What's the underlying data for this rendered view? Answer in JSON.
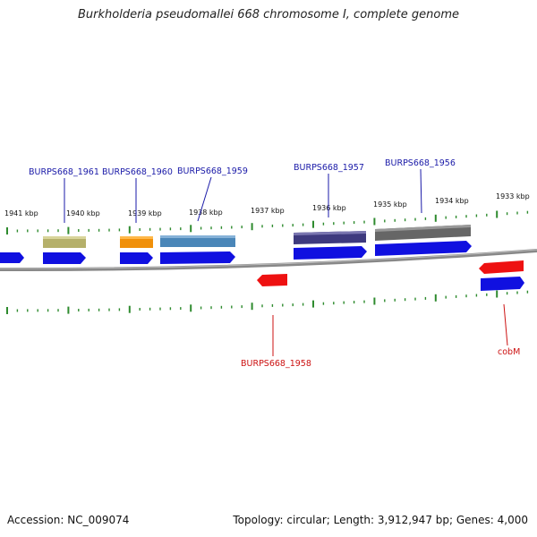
{
  "title": "Burkholderia pseudomallei 668 chromosome I, complete genome",
  "footer": {
    "accession": "Accession: NC_009074",
    "summary": "Topology: circular; Length: 3,912,947 bp; Genes: 4,000"
  },
  "colors": {
    "backbone": "#888888",
    "tick": "#2e8b2e",
    "cds": "#1010e0",
    "minus_strand_cds": "#ee1111",
    "label_blue": "#1a1aa8",
    "label_red": "#cc1111"
  },
  "kbp_ticks": [
    "1941 kbp",
    "1940 kbp",
    "1939 kbp",
    "1938 kbp",
    "1937 kbp",
    "1936 kbp",
    "1935 kbp",
    "1934 kbp",
    "1933 kbp"
  ],
  "gene_labels_top": [
    "BURPS668_1961",
    "BURPS668_1960",
    "BURPS668_1959",
    "BURPS668_1957",
    "BURPS668_1956"
  ],
  "gene_labels_bottom": [
    "BURPS668_1958",
    "cobM"
  ],
  "feature_colors": [
    "#b5b06a",
    "#f0900a",
    "#4a86b8",
    "#3e3a7e",
    "#666666"
  ]
}
